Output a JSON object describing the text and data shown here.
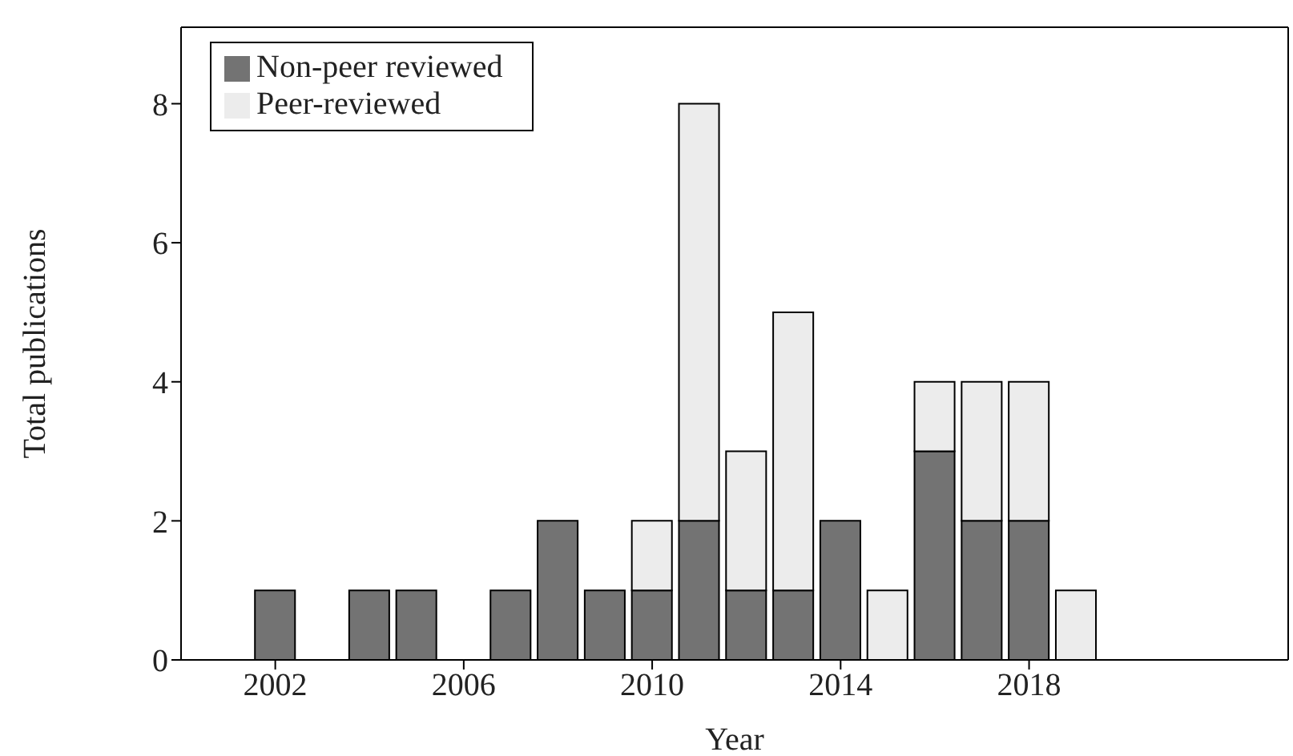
{
  "chart_data": {
    "type": "bar",
    "stacked": true,
    "xlabel": "Year",
    "ylabel": "Total publications",
    "x": [
      2002,
      2004,
      2005,
      2007,
      2008,
      2009,
      2010,
      2011,
      2012,
      2013,
      2014,
      2015,
      2016,
      2017,
      2018,
      2019
    ],
    "series": [
      {
        "name": "Non-peer reviewed",
        "color": "#737373",
        "values": [
          1,
          1,
          1,
          1,
          2,
          1,
          1,
          2,
          1,
          1,
          2,
          0,
          3,
          2,
          2,
          0
        ]
      },
      {
        "name": "Peer-reviewed",
        "color": "#ececec",
        "values": [
          0,
          0,
          0,
          0,
          0,
          0,
          1,
          6,
          2,
          4,
          0,
          1,
          1,
          2,
          2,
          1
        ]
      }
    ],
    "xlim": [
      2000,
      2023.5
    ],
    "xticks": [
      2002,
      2006,
      2010,
      2014,
      2018
    ],
    "ylim": [
      0,
      9.1
    ],
    "yticks": [
      0,
      2,
      4,
      6,
      8
    ],
    "grid": false,
    "legend": "top left"
  }
}
